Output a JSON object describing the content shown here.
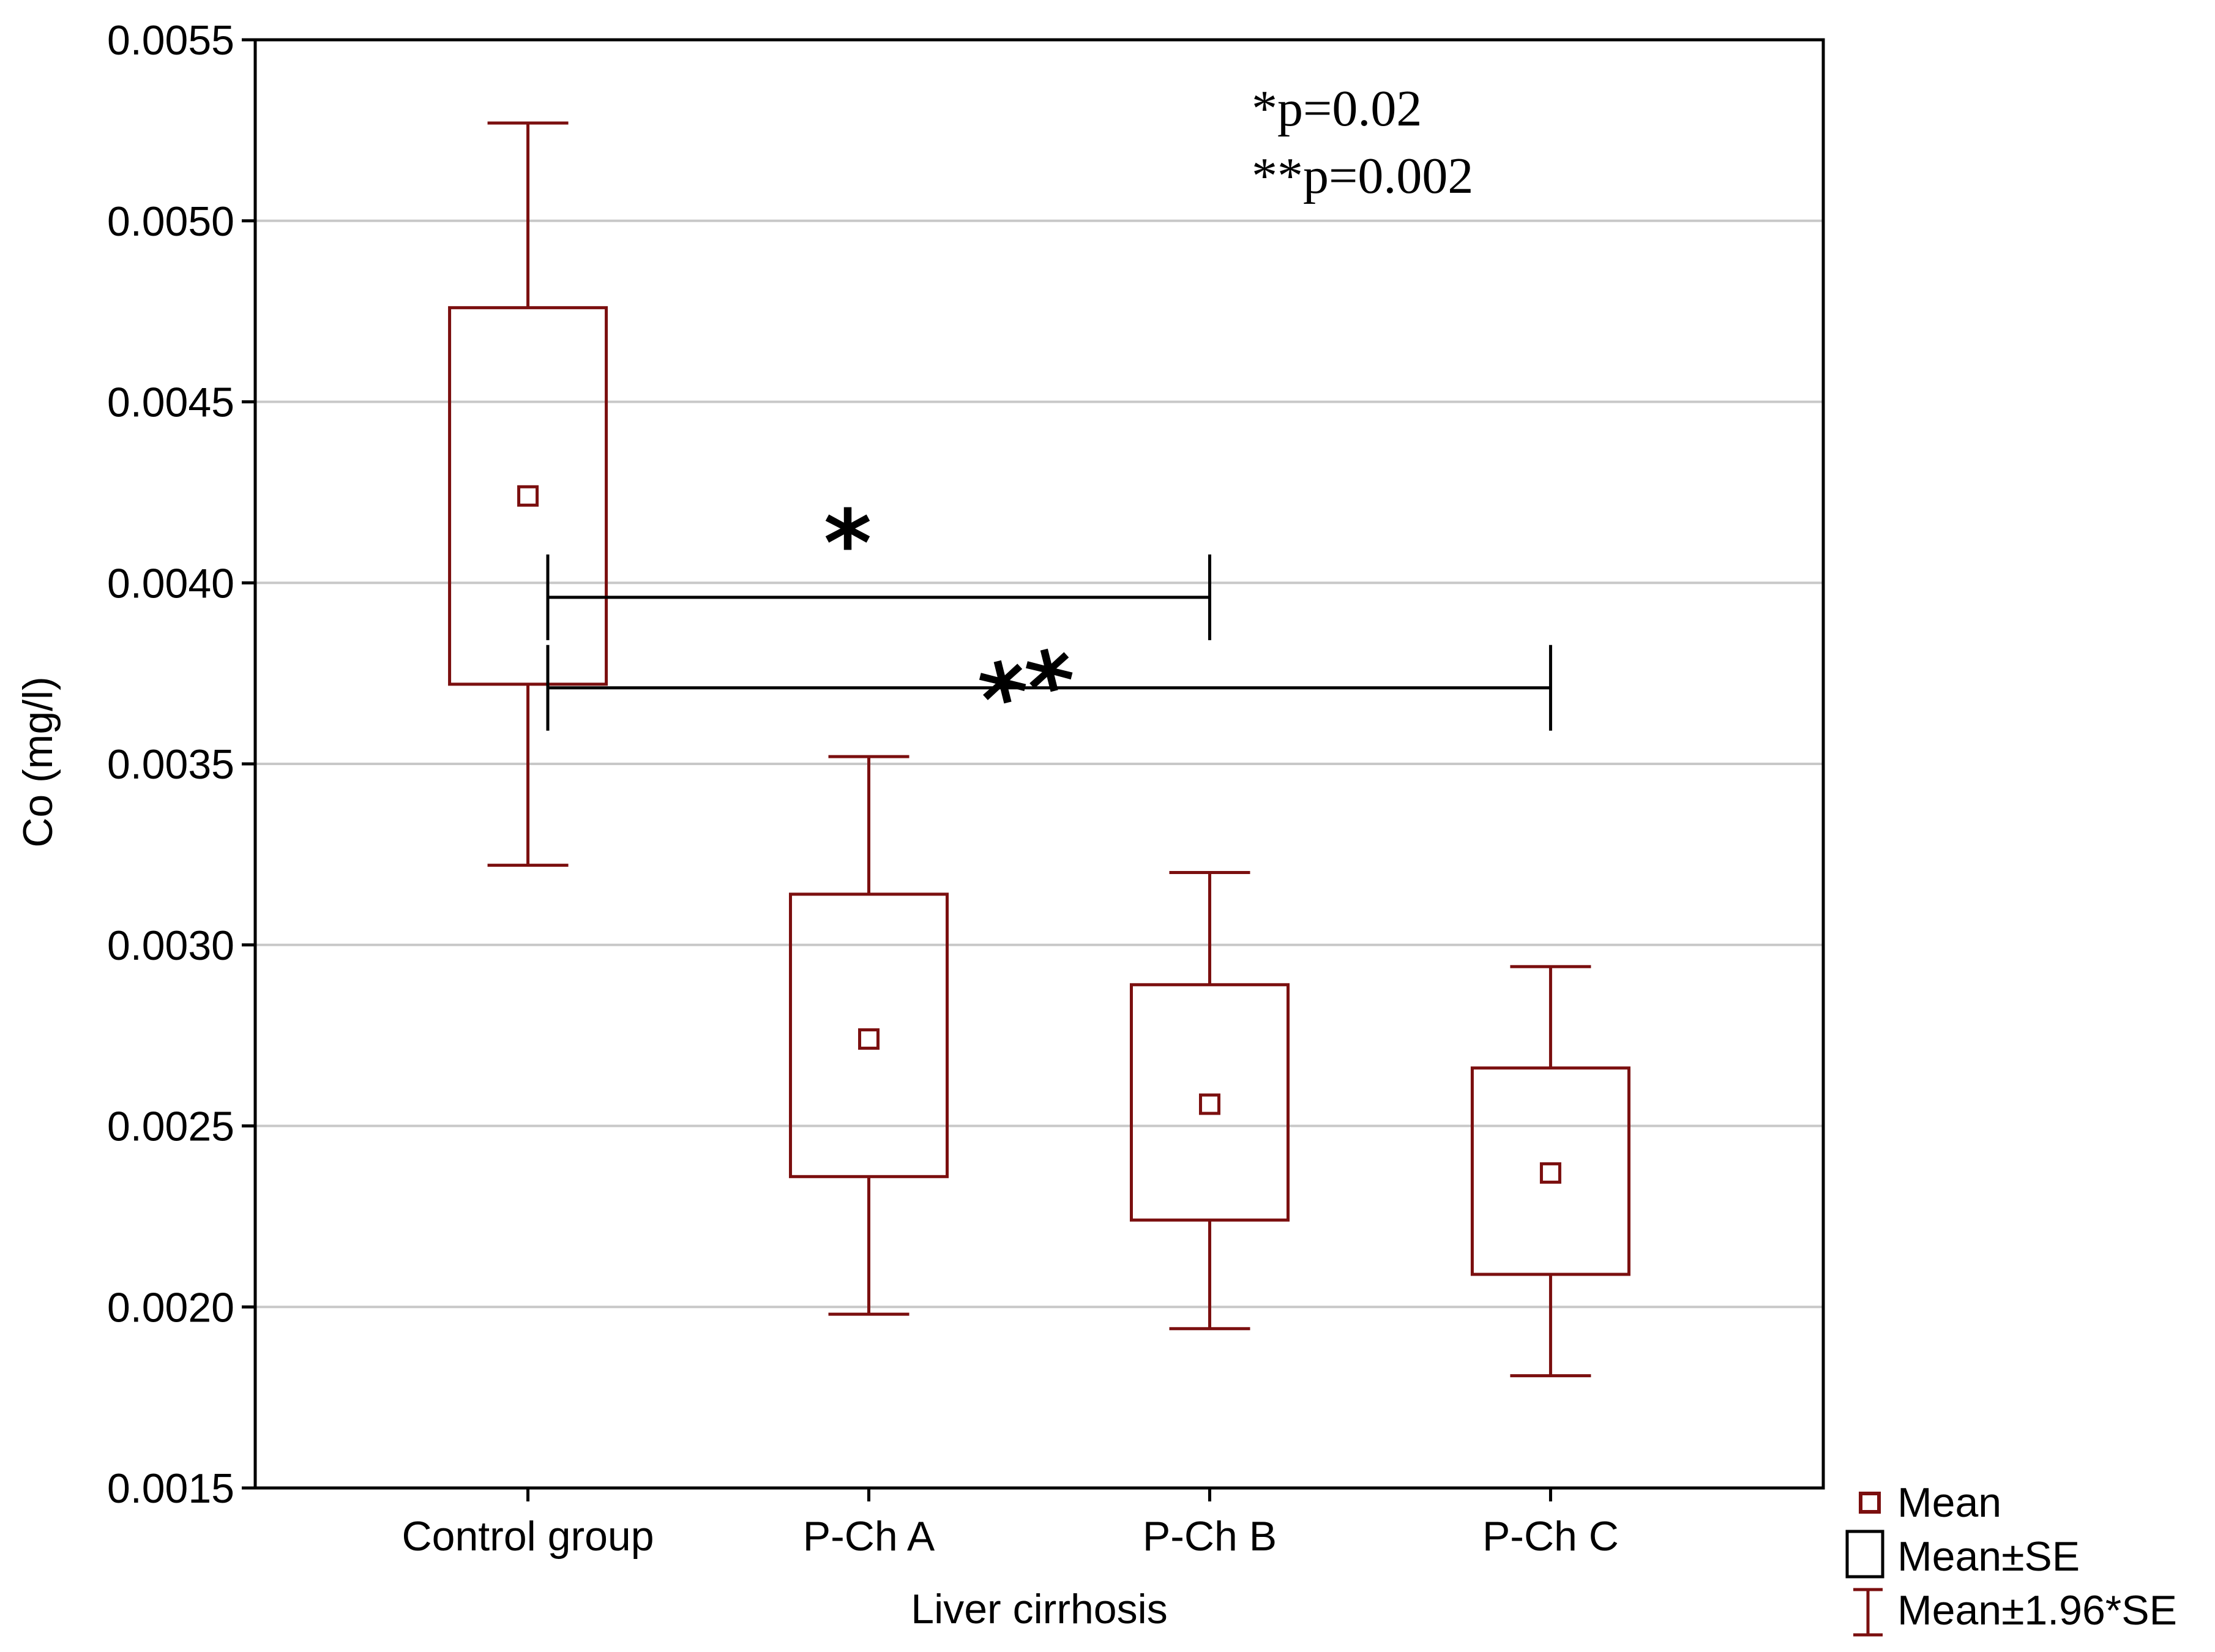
{
  "chart_data": {
    "type": "box",
    "xlabel": "Liver cirrhosis",
    "ylabel": "Co (mg/l)",
    "ylim": [
      0.0015,
      0.0055
    ],
    "yticks": [
      "0.0015",
      "0.0020",
      "0.0025",
      "0.0030",
      "0.0035",
      "0.0040",
      "0.0045",
      "0.0050",
      "0.0055"
    ],
    "grid": true,
    "categories": [
      "Control group",
      "P-Ch A",
      "P-Ch B",
      "P-Ch C"
    ],
    "groups": [
      {
        "name": "Control group",
        "mean": 0.00424,
        "se_low": 0.00372,
        "se_high": 0.00476,
        "ci_low": 0.00322,
        "ci_high": 0.00527
      },
      {
        "name": "P-Ch A",
        "mean": 0.00274,
        "se_low": 0.00236,
        "se_high": 0.00314,
        "ci_low": 0.00198,
        "ci_high": 0.00352
      },
      {
        "name": "P-Ch B",
        "mean": 0.00256,
        "se_low": 0.00224,
        "se_high": 0.00289,
        "ci_low": 0.00194,
        "ci_high": 0.0032
      },
      {
        "name": "P-Ch C",
        "mean": 0.00237,
        "se_low": 0.00209,
        "se_high": 0.00266,
        "ci_low": 0.00181,
        "ci_high": 0.00294
      }
    ],
    "significance": [
      {
        "from": "Control group",
        "to": "P-Ch B",
        "level": 0.00396,
        "mark": "*"
      },
      {
        "from": "Control group",
        "to": "P-Ch C",
        "level": 0.00371,
        "mark": "**"
      }
    ],
    "annotations": [
      "*p=0.02",
      "**p=0.002"
    ],
    "legend": [
      "Mean",
      "Mean±SE",
      "Mean±1.96*SE"
    ],
    "legend_position": "bottom-right",
    "series_color": "#7b0f0f"
  }
}
